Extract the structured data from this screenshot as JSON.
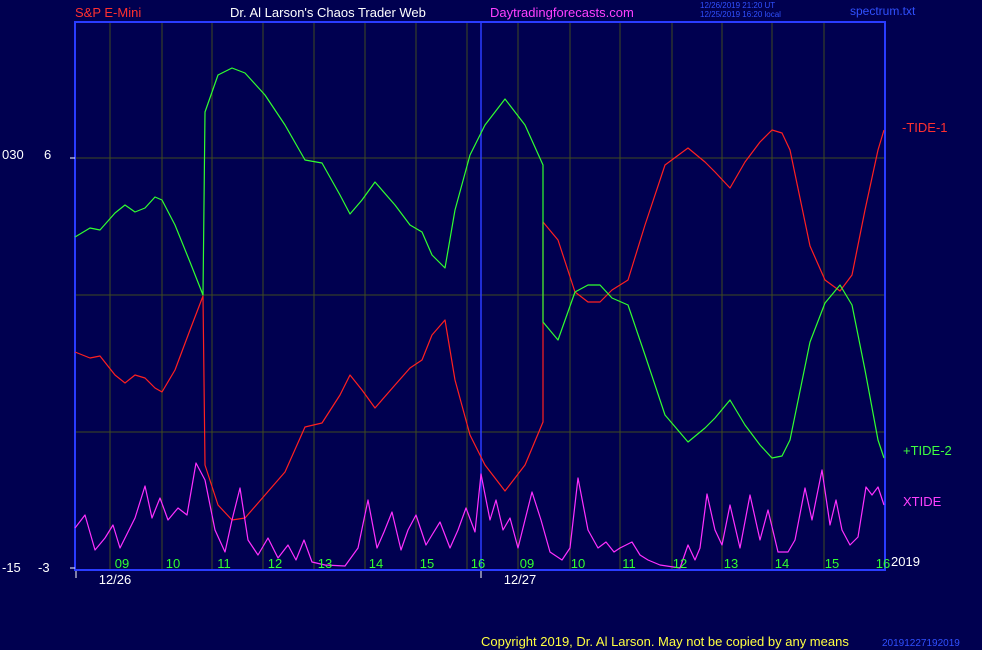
{
  "header": {
    "symbol": "S&P E-Mini",
    "title": "Dr. Al Larson's Chaos Trader Web",
    "website": "Daytradingforecasts.com",
    "timestamp_line1": "12/26/2019 21:20 UT",
    "timestamp_line2": "12/25/2019 16:20 local",
    "file": "spectrum.txt"
  },
  "left_axis": {
    "outer_labels": [
      "030",
      "-15"
    ],
    "inner_labels": [
      "6",
      "-3"
    ]
  },
  "year_label": "2019",
  "copyright": "Copyright 2019, Dr. Al Larson. May not be copied by any means",
  "copyright_suffix": "20191227192019",
  "colors": {
    "background": "#000050",
    "frame": "#2a3cff",
    "grid": "#404a20",
    "tide1": "#ff2020",
    "tide2": "#30ff30",
    "xtide": "#ff30ff",
    "hour_labels": "#30ff30",
    "date_labels": "#ffffff"
  },
  "chart_data": {
    "type": "line",
    "title": "",
    "xlabel": "",
    "ylabel": "",
    "x_axis": {
      "date_labels": [
        "12/26",
        "12/27"
      ],
      "hour_labels": [
        "09",
        "10",
        "11",
        "12",
        "13",
        "14",
        "15",
        "16",
        "09",
        "10",
        "11",
        "12",
        "13",
        "14",
        "15",
        "16"
      ]
    },
    "y_ticks": [
      "6",
      "-3"
    ],
    "grid": true,
    "series": [
      {
        "name": "-TIDE-1",
        "color": "#ff2020",
        "points": [
          [
            75,
            352
          ],
          [
            90,
            358
          ],
          [
            100,
            356
          ],
          [
            115,
            375
          ],
          [
            125,
            383
          ],
          [
            135,
            375
          ],
          [
            145,
            378
          ],
          [
            155,
            388
          ],
          [
            162,
            392
          ],
          [
            175,
            370
          ],
          [
            190,
            330
          ],
          [
            203,
            296
          ],
          [
            205,
            465
          ],
          [
            218,
            505
          ],
          [
            232,
            520
          ],
          [
            245,
            518
          ],
          [
            265,
            495
          ],
          [
            285,
            472
          ],
          [
            305,
            427
          ],
          [
            322,
            423
          ],
          [
            340,
            395
          ],
          [
            350,
            375
          ],
          [
            362,
            390
          ],
          [
            375,
            408
          ],
          [
            395,
            385
          ],
          [
            410,
            368
          ],
          [
            422,
            360
          ],
          [
            432,
            335
          ],
          [
            445,
            320
          ],
          [
            455,
            380
          ],
          [
            470,
            435
          ],
          [
            485,
            465
          ],
          [
            505,
            491
          ],
          [
            525,
            465
          ],
          [
            543,
            422
          ],
          [
            543,
            222
          ],
          [
            558,
            240
          ],
          [
            575,
            292
          ],
          [
            588,
            302
          ],
          [
            600,
            302
          ],
          [
            612,
            290
          ],
          [
            628,
            280
          ],
          [
            645,
            225
          ],
          [
            665,
            165
          ],
          [
            688,
            148
          ],
          [
            705,
            162
          ],
          [
            715,
            172
          ],
          [
            730,
            188
          ],
          [
            745,
            162
          ],
          [
            760,
            142
          ],
          [
            772,
            130
          ],
          [
            782,
            133
          ],
          [
            790,
            150
          ],
          [
            810,
            246
          ],
          [
            825,
            280
          ],
          [
            840,
            291
          ],
          [
            852,
            275
          ],
          [
            865,
            210
          ],
          [
            878,
            150
          ],
          [
            884,
            130
          ]
        ]
      },
      {
        "name": "+TIDE-2",
        "color": "#30ff30",
        "points": [
          [
            75,
            237
          ],
          [
            90,
            228
          ],
          [
            100,
            230
          ],
          [
            115,
            213
          ],
          [
            125,
            205
          ],
          [
            135,
            212
          ],
          [
            145,
            208
          ],
          [
            155,
            197
          ],
          [
            162,
            200
          ],
          [
            175,
            225
          ],
          [
            190,
            262
          ],
          [
            203,
            295
          ],
          [
            205,
            112
          ],
          [
            218,
            75
          ],
          [
            232,
            68
          ],
          [
            245,
            73
          ],
          [
            265,
            95
          ],
          [
            285,
            125
          ],
          [
            305,
            160
          ],
          [
            322,
            163
          ],
          [
            340,
            195
          ],
          [
            350,
            214
          ],
          [
            362,
            200
          ],
          [
            375,
            182
          ],
          [
            395,
            205
          ],
          [
            410,
            225
          ],
          [
            422,
            232
          ],
          [
            432,
            255
          ],
          [
            445,
            268
          ],
          [
            455,
            210
          ],
          [
            470,
            155
          ],
          [
            485,
            125
          ],
          [
            505,
            99
          ],
          [
            525,
            125
          ],
          [
            543,
            165
          ],
          [
            543,
            322
          ],
          [
            558,
            340
          ],
          [
            575,
            292
          ],
          [
            588,
            285
          ],
          [
            600,
            285
          ],
          [
            612,
            298
          ],
          [
            628,
            305
          ],
          [
            645,
            355
          ],
          [
            665,
            415
          ],
          [
            688,
            442
          ],
          [
            705,
            428
          ],
          [
            715,
            418
          ],
          [
            730,
            400
          ],
          [
            745,
            425
          ],
          [
            760,
            445
          ],
          [
            772,
            458
          ],
          [
            782,
            456
          ],
          [
            790,
            440
          ],
          [
            810,
            342
          ],
          [
            825,
            303
          ],
          [
            840,
            285
          ],
          [
            852,
            305
          ],
          [
            865,
            370
          ],
          [
            878,
            440
          ],
          [
            884,
            458
          ]
        ]
      },
      {
        "name": "XTIDE",
        "color": "#ff30ff",
        "points": [
          [
            75,
            528
          ],
          [
            85,
            515
          ],
          [
            95,
            550
          ],
          [
            105,
            538
          ],
          [
            113,
            525
          ],
          [
            120,
            548
          ],
          [
            128,
            532
          ],
          [
            135,
            518
          ],
          [
            145,
            486
          ],
          [
            152,
            518
          ],
          [
            160,
            498
          ],
          [
            168,
            520
          ],
          [
            178,
            508
          ],
          [
            187,
            515
          ],
          [
            196,
            463
          ],
          [
            205,
            480
          ],
          [
            215,
            530
          ],
          [
            225,
            552
          ],
          [
            232,
            520
          ],
          [
            240,
            488
          ],
          [
            248,
            540
          ],
          [
            258,
            555
          ],
          [
            268,
            538
          ],
          [
            278,
            558
          ],
          [
            288,
            545
          ],
          [
            296,
            560
          ],
          [
            304,
            540
          ],
          [
            312,
            562
          ],
          [
            325,
            565
          ],
          [
            345,
            566
          ],
          [
            358,
            548
          ],
          [
            368,
            500
          ],
          [
            377,
            548
          ],
          [
            384,
            532
          ],
          [
            392,
            512
          ],
          [
            401,
            550
          ],
          [
            408,
            530
          ],
          [
            416,
            515
          ],
          [
            426,
            545
          ],
          [
            432,
            535
          ],
          [
            440,
            522
          ],
          [
            450,
            548
          ],
          [
            458,
            530
          ],
          [
            466,
            508
          ],
          [
            475,
            532
          ],
          [
            481,
            474
          ],
          [
            490,
            520
          ],
          [
            496,
            500
          ],
          [
            503,
            530
          ],
          [
            510,
            518
          ],
          [
            518,
            548
          ],
          [
            525,
            520
          ],
          [
            532,
            492
          ],
          [
            541,
            520
          ],
          [
            550,
            552
          ],
          [
            562,
            560
          ],
          [
            570,
            548
          ],
          [
            578,
            478
          ],
          [
            588,
            530
          ],
          [
            598,
            548
          ],
          [
            606,
            542
          ],
          [
            614,
            552
          ],
          [
            620,
            548
          ],
          [
            632,
            542
          ],
          [
            640,
            555
          ],
          [
            648,
            560
          ],
          [
            660,
            565
          ],
          [
            680,
            568
          ],
          [
            688,
            545
          ],
          [
            695,
            560
          ],
          [
            700,
            548
          ],
          [
            707,
            494
          ],
          [
            715,
            530
          ],
          [
            722,
            545
          ],
          [
            730,
            505
          ],
          [
            740,
            548
          ],
          [
            750,
            495
          ],
          [
            760,
            540
          ],
          [
            768,
            510
          ],
          [
            778,
            552
          ],
          [
            788,
            552
          ],
          [
            795,
            540
          ],
          [
            805,
            488
          ],
          [
            812,
            520
          ],
          [
            822,
            470
          ],
          [
            830,
            525
          ],
          [
            836,
            500
          ],
          [
            842,
            530
          ],
          [
            850,
            545
          ],
          [
            858,
            537
          ],
          [
            866,
            487
          ],
          [
            872,
            495
          ],
          [
            878,
            487
          ],
          [
            884,
            505
          ]
        ]
      }
    ]
  }
}
